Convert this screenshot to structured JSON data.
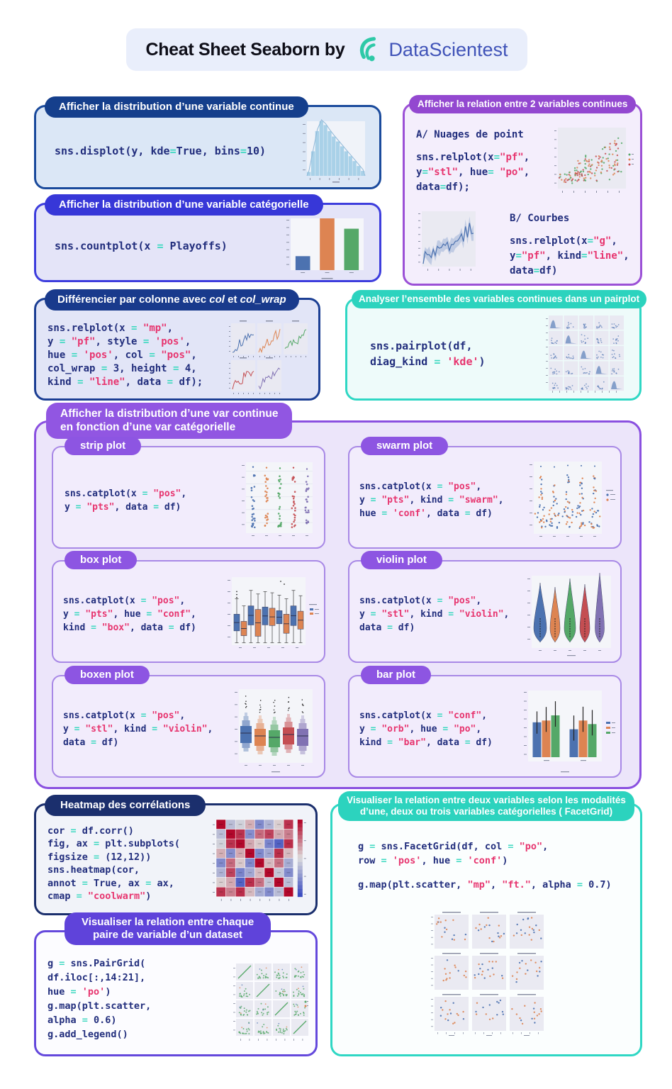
{
  "header": {
    "title": "Cheat Sheet Seaborn by",
    "brand": "DataScientest",
    "logo": "datascientest-logo"
  },
  "palette": {
    "header": {
      "fill": "#e9eefb",
      "brand": "#4053b8",
      "logo": "#2ec9a7"
    },
    "code": {
      "text": "#222e7d",
      "op": "#3fd9c1",
      "str": "#e7356f"
    },
    "displot": {
      "border": "#1a4a9c",
      "pill": "#153f8c",
      "fill": "#dbe7f6"
    },
    "countplot": {
      "border": "#3d3ddd",
      "pill": "#3737d8",
      "fill": "#e4e4f8"
    },
    "relplot": {
      "border": "#9b50d6",
      "pill": "#9348d0",
      "fill": "#f4eefc"
    },
    "colwrap": {
      "border": "#1c3f94",
      "pill": "#193a8c",
      "fill": "#e2e5f7"
    },
    "pairplot": {
      "border": "#2fd7c4",
      "pill": "#2cd3be",
      "fill": "#eefbfa"
    },
    "catsection": {
      "border": "#8a50e0",
      "pill": "#9156e2",
      "fill": "#ece5fa"
    },
    "subbox": {
      "border": "#a888e6",
      "pill": "#8d55e2",
      "fill": "#f2ecfc"
    },
    "heatmap": {
      "border": "#1b2f6d",
      "pill": "#1b2f6d",
      "fill": "#f1f3f9"
    },
    "facetgrid": {
      "border": "#2fd7c4",
      "pill": "#2cd3be",
      "fill": "#fbfefe"
    },
    "pairgrid": {
      "border": "#6448dc",
      "pill": "#5f43da",
      "fill": "#fcfcff"
    }
  },
  "boxes": {
    "displot": {
      "title": "Afficher la distribution d’une variable continue",
      "code": [
        "sns.displot(y, kde=True, bins=10)"
      ]
    },
    "countplot": {
      "title": "Afficher la distribution d’une variable catégorielle",
      "code": [
        "sns.countplot(x = Playoffs)"
      ]
    },
    "relplot": {
      "title": "Afficher la relation entre 2 variables continues",
      "scatter_label": "A/ Nuages de point",
      "scatter_code": [
        "sns.relplot(x=\"pf\",",
        "y=\"stl\", hue= \"po\",",
        "data=df);"
      ],
      "line_label": "B/ Courbes",
      "line_code": [
        "sns.relplot(x=\"g\",",
        "y=\"pf\", kind=\"line\",",
        "data=df)"
      ]
    },
    "colwrap": {
      "title_prefix": "Différencier par colonne avec ",
      "title_italic1": "col",
      "title_mid": " et ",
      "title_italic2": "col_wrap",
      "code": [
        "sns.relplot(x = \"mp\",",
        "y = \"pf\", style = 'pos',",
        "hue = 'pos', col = \"pos\",",
        "col_wrap = 3, height = 4,",
        "kind = \"line\", data = df);"
      ]
    },
    "pairplot": {
      "title": "Analyser l’ensemble des variables continues dans un pairplot",
      "code": [
        "sns.pairplot(df,",
        "diag_kind = 'kde')"
      ]
    },
    "catsection": {
      "title_line1": "Afficher la distribution d’une var continue",
      "title_line2": "en fonction d’une var catégorielle",
      "strip": {
        "label": "strip plot",
        "code": [
          "sns.catplot(x = \"pos\",",
          "y = \"pts\", data = df)"
        ]
      },
      "swarm": {
        "label": "swarm plot",
        "code": [
          "sns.catplot(x = \"pos\",",
          "y = \"pts\", kind = \"swarm\",",
          "hue = 'conf', data = df)"
        ]
      },
      "box": {
        "label": "box plot",
        "code": [
          "sns.catplot(x = \"pos\",",
          "y = \"pts\", hue = \"conf\",",
          "kind = \"box\", data = df)"
        ]
      },
      "violin": {
        "label": "violin plot",
        "code": [
          "sns.catplot(x = \"pos\",",
          "y = \"stl\", kind = \"violin\",",
          "data = df)"
        ]
      },
      "boxen": {
        "label": "boxen plot",
        "code": [
          "sns.catplot(x = \"pos\",",
          "y = \"stl\", kind = \"violin\",",
          "data = df)"
        ]
      },
      "bar": {
        "label": "bar plot",
        "code": [
          "sns.catplot(x = \"conf\",",
          "y = \"orb\", hue = \"po\",",
          "kind = \"bar\", data = df)"
        ]
      }
    },
    "heatmap": {
      "title": "Heatmap des corrélations",
      "code": [
        "cor = df.corr()",
        "fig, ax = plt.subplots(",
        "figsize = (12,12))",
        "sns.heatmap(cor,",
        "annot = True, ax = ax,",
        "cmap = \"coolwarm\")"
      ]
    },
    "facetgrid": {
      "title_line1": "Visualiser la relation entre deux variables selon les modalités",
      "title_line2": "d’une, deux ou trois variables catégorielles ( FacetGrid)",
      "code1": [
        "g = sns.FacetGrid(df, col = \"po\",",
        "row = 'pos', hue = 'conf')"
      ],
      "code2": [
        "g.map(plt.scatter, \"mp\", \"ft.\", alpha = 0.7)"
      ]
    },
    "pairgrid": {
      "title_line1": "Visualiser la relation entre chaque",
      "title_line2": "paire de variable d’un dataset",
      "code": [
        "g = sns.PairGrid(",
        "df.iloc[:,14:21],",
        "hue = 'po')",
        "g.map(plt.scatter,",
        "alpha = 0.6)",
        "g.add_legend()"
      ]
    }
  }
}
